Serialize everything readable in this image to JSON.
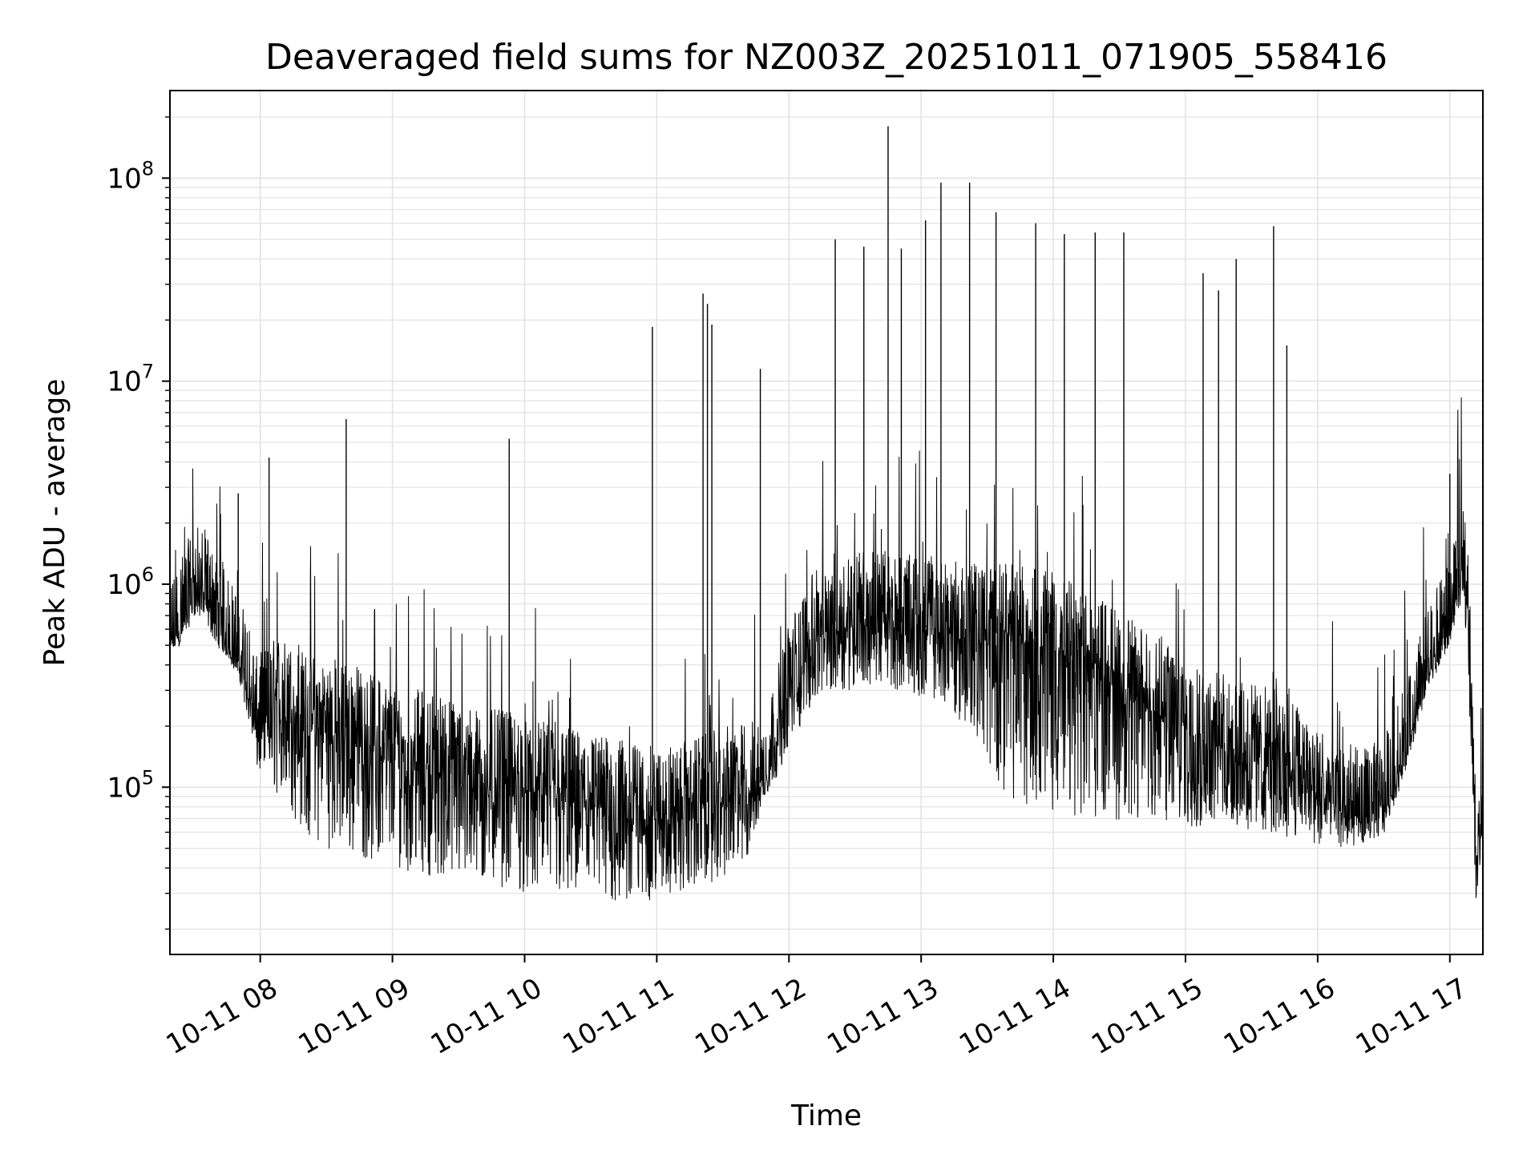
{
  "chart_data": {
    "type": "line",
    "title": "Deaveraged field sums for NZ003Z_20251011_071905_558416",
    "xlabel": "Time",
    "ylabel": "Peak ADU - average",
    "yscale": "log",
    "ylim": [
      15000,
      270000000
    ],
    "xlim": [
      "10-11 07:19",
      "10-11 17:15"
    ],
    "x_ticks": [
      "10-11 08",
      "10-11 09",
      "10-11 10",
      "10-11 11",
      "10-11 12",
      "10-11 13",
      "10-11 14",
      "10-11 15",
      "10-11 16",
      "10-11 17"
    ],
    "y_ticks": [
      {
        "base": "10",
        "exp": "5",
        "value": 100000
      },
      {
        "base": "10",
        "exp": "6",
        "value": 1000000
      },
      {
        "base": "10",
        "exp": "7",
        "value": 10000000
      },
      {
        "base": "10",
        "exp": "8",
        "value": 100000000
      }
    ],
    "grid": true,
    "line_color": "#000000",
    "grid_color": "#e3e3e3",
    "series": [
      {
        "time": [
          "10-11 07:19",
          "10-11 07:24",
          "10-11 07:30",
          "10-11 07:35",
          "10-11 07:40",
          "10-11 07:46",
          "10-11 07:51",
          "10-11 07:55",
          "10-11 07:58",
          "10-11 08:02",
          "10-11 08:08",
          "10-11 08:15",
          "10-11 08:22",
          "10-11 08:30",
          "10-11 08:38",
          "10-11 08:45",
          "10-11 08:52",
          "10-11 09:00",
          "10-11 09:10",
          "10-11 09:20",
          "10-11 09:30",
          "10-11 09:40",
          "10-11 09:50",
          "10-11 10:00",
          "10-11 10:10",
          "10-11 10:20",
          "10-11 10:30",
          "10-11 10:40",
          "10-11 10:50",
          "10-11 11:00",
          "10-11 11:10",
          "10-11 11:20",
          "10-11 11:30",
          "10-11 11:40",
          "10-11 11:50",
          "10-11 12:00",
          "10-11 12:10",
          "10-11 12:20",
          "10-11 12:30",
          "10-11 12:40",
          "10-11 12:50",
          "10-11 13:00",
          "10-11 13:10",
          "10-11 13:20",
          "10-11 13:30",
          "10-11 13:40",
          "10-11 13:50",
          "10-11 14:00",
          "10-11 14:10",
          "10-11 14:20",
          "10-11 14:30",
          "10-11 14:40",
          "10-11 14:50",
          "10-11 15:00",
          "10-11 15:10",
          "10-11 15:20",
          "10-11 15:30",
          "10-11 15:40",
          "10-11 15:50",
          "10-11 16:00",
          "10-11 16:10",
          "10-11 16:20",
          "10-11 16:30",
          "10-11 16:40",
          "10-11 16:50",
          "10-11 17:00",
          "10-11 17:03",
          "10-11 17:06",
          "10-11 17:08",
          "10-11 17:10",
          "10-11 17:12",
          "10-11 17:15"
        ],
        "typical": [
          500000,
          620000,
          900000,
          850000,
          620000,
          500000,
          400000,
          300000,
          200000,
          220000,
          260000,
          230000,
          210000,
          200000,
          200000,
          180000,
          160000,
          150000,
          140000,
          135000,
          120000,
          110000,
          110000,
          100000,
          95000,
          90000,
          85000,
          80000,
          75000,
          72000,
          75000,
          82000,
          90000,
          95000,
          110000,
          300000,
          500000,
          650000,
          700000,
          680000,
          650000,
          620000,
          600000,
          580000,
          570000,
          580000,
          560000,
          520000,
          460000,
          400000,
          340000,
          280000,
          240000,
          200000,
          180000,
          160000,
          150000,
          140000,
          120000,
          95000,
          80000,
          70000,
          80000,
          150000,
          350000,
          600000,
          900000,
          1100000,
          900000,
          300000,
          30000,
          80000
        ],
        "low": [
          450000,
          500000,
          700000,
          650000,
          500000,
          420000,
          320000,
          200000,
          120000,
          110000,
          90000,
          70000,
          55000,
          50000,
          48000,
          45000,
          42000,
          40000,
          38000,
          36000,
          35000,
          33000,
          32000,
          30000,
          29000,
          28000,
          27000,
          26000,
          26000,
          28000,
          30000,
          33000,
          35000,
          40000,
          90000,
          150000,
          250000,
          300000,
          300000,
          320000,
          300000,
          280000,
          260000,
          200000,
          120000,
          90000,
          80000,
          75000,
          72000,
          70000,
          68000,
          66000,
          64000,
          62000,
          62000,
          60000,
          60000,
          58000,
          55000,
          52000,
          50000,
          52000,
          58000,
          120000,
          300000,
          500000,
          700000,
          800000,
          500000,
          100000,
          26000,
          60000
        ],
        "spikes": [
          {
            "t": "10-11 07:50",
            "v": 2800000
          },
          {
            "t": "10-11 08:04",
            "v": 4200000
          },
          {
            "t": "10-11 08:39",
            "v": 6500000
          },
          {
            "t": "10-11 09:53",
            "v": 5200000
          },
          {
            "t": "10-11 10:58",
            "v": 18500000
          },
          {
            "t": "10-11 11:21",
            "v": 27000000
          },
          {
            "t": "10-11 11:23",
            "v": 24000000
          },
          {
            "t": "10-11 11:25",
            "v": 19000000
          },
          {
            "t": "10-11 11:47",
            "v": 11500000
          },
          {
            "t": "10-11 12:21",
            "v": 50000000
          },
          {
            "t": "10-11 12:34",
            "v": 46000000
          },
          {
            "t": "10-11 12:45",
            "v": 180000000
          },
          {
            "t": "10-11 12:51",
            "v": 45000000
          },
          {
            "t": "10-11 13:02",
            "v": 62000000
          },
          {
            "t": "10-11 13:09",
            "v": 95000000
          },
          {
            "t": "10-11 13:22",
            "v": 95000000
          },
          {
            "t": "10-11 13:34",
            "v": 68000000
          },
          {
            "t": "10-11 13:52",
            "v": 60000000
          },
          {
            "t": "10-11 14:05",
            "v": 53000000
          },
          {
            "t": "10-11 14:19",
            "v": 54000000
          },
          {
            "t": "10-11 14:32",
            "v": 54000000
          },
          {
            "t": "10-11 15:08",
            "v": 34000000
          },
          {
            "t": "10-11 15:15",
            "v": 28000000
          },
          {
            "t": "10-11 15:23",
            "v": 40000000
          },
          {
            "t": "10-11 15:40",
            "v": 58000000
          },
          {
            "t": "10-11 15:46",
            "v": 15000000
          },
          {
            "t": "10-11 17:00",
            "v": 3500000
          }
        ]
      }
    ]
  }
}
